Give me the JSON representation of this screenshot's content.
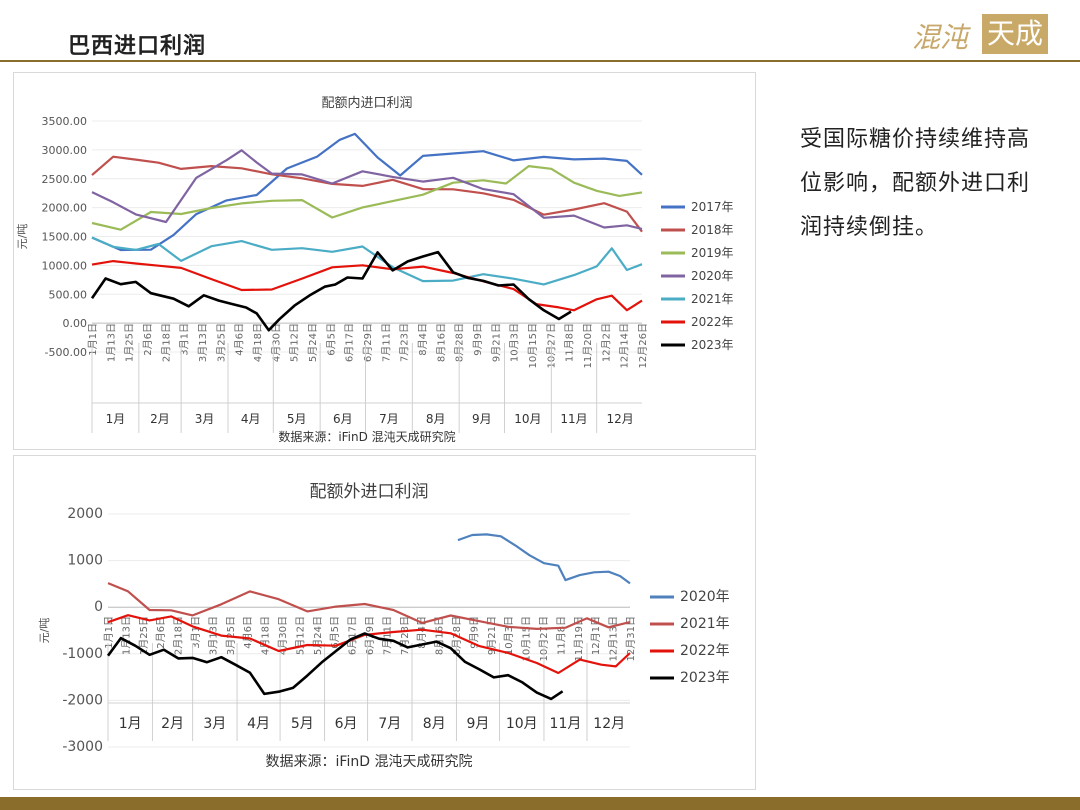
{
  "page": {
    "title": "巴西进口利润",
    "logo_script": "混沌",
    "logo_box": "天成",
    "commentary": "受国际糖价持续维持高位影响，配额外进口利润持续倒挂。",
    "accent_color": "#8a6d2b"
  },
  "chart_data": [
    {
      "type": "line",
      "title": "配额内进口利润",
      "ylabel": "元/吨",
      "source": "数据来源：iFinD 混沌天成研究院",
      "ylim": [
        -500,
        3500
      ],
      "y_ticks": [
        "3500.00",
        "3000.00",
        "2500.00",
        "2000.00",
        "1500.00",
        "1000.00",
        "500.00",
        "0.00",
        "-500.00"
      ],
      "months": [
        "1月",
        "2月",
        "3月",
        "4月",
        "5月",
        "6月",
        "7月",
        "8月",
        "9月",
        "10月",
        "11月",
        "12月"
      ],
      "date_ticks": [
        "1月1日",
        "1月13日",
        "1月25日",
        "2月6日",
        "2月18日",
        "3月1日",
        "3月13日",
        "3月25日",
        "4月6日",
        "4月18日",
        "4月30日",
        "5月12日",
        "5月24日",
        "6月5日",
        "6月17日",
        "6月29日",
        "7月11日",
        "7月23日",
        "8月4日",
        "8月16日",
        "8月28日",
        "9月9日",
        "9月21日",
        "10月3日",
        "10月15日",
        "10月27日",
        "11月8日",
        "11月20日",
        "12月2日",
        "12月14日",
        "12月26日"
      ],
      "x_unit": "day of year",
      "series": [
        {
          "name": "2017年",
          "color": "#4472c4",
          "x": [
            1,
            20,
            40,
            55,
            70,
            90,
            110,
            130,
            150,
            165,
            175,
            190,
            205,
            220,
            240,
            260,
            280,
            300,
            320,
            340,
            355,
            365
          ],
          "y": [
            1450,
            1250,
            1300,
            1550,
            1900,
            2100,
            2250,
            2650,
            2900,
            3200,
            3250,
            2850,
            2550,
            2900,
            2950,
            2950,
            2850,
            2850,
            2850,
            2850,
            2800,
            2600
          ]
        },
        {
          "name": "2018年",
          "color": "#c0504d",
          "x": [
            1,
            15,
            30,
            45,
            60,
            80,
            100,
            120,
            140,
            160,
            180,
            200,
            220,
            240,
            260,
            280,
            300,
            320,
            340,
            355,
            365
          ],
          "y": [
            2550,
            2850,
            2800,
            2750,
            2650,
            2750,
            2650,
            2600,
            2500,
            2400,
            2400,
            2450,
            2350,
            2300,
            2250,
            2150,
            1850,
            2000,
            2050,
            1900,
            1600
          ]
        },
        {
          "name": "2019年",
          "color": "#9bbb59",
          "x": [
            1,
            20,
            40,
            60,
            80,
            100,
            120,
            140,
            160,
            180,
            200,
            220,
            240,
            260,
            275,
            290,
            305,
            320,
            335,
            350,
            365
          ],
          "y": [
            1750,
            1650,
            1900,
            1900,
            2000,
            2050,
            2150,
            2100,
            1850,
            2000,
            2100,
            2250,
            2400,
            2500,
            2450,
            2750,
            2700,
            2450,
            2300,
            2200,
            2250
          ]
        },
        {
          "name": "2020年",
          "color": "#8064a2",
          "x": [
            1,
            15,
            30,
            50,
            70,
            90,
            100,
            110,
            120,
            140,
            160,
            180,
            200,
            220,
            240,
            260,
            280,
            300,
            320,
            340,
            355,
            365
          ],
          "y": [
            2300,
            2100,
            1900,
            1750,
            2500,
            2850,
            3000,
            2750,
            2600,
            2550,
            2450,
            2600,
            2550,
            2450,
            2500,
            2350,
            2200,
            1850,
            1850,
            1650,
            1700,
            1600
          ]
        },
        {
          "name": "2021年",
          "color": "#4bacc6",
          "x": [
            1,
            15,
            30,
            45,
            60,
            80,
            100,
            120,
            140,
            160,
            180,
            200,
            220,
            240,
            260,
            280,
            300,
            320,
            335,
            345,
            355,
            365
          ],
          "y": [
            1500,
            1350,
            1300,
            1400,
            1100,
            1300,
            1450,
            1250,
            1300,
            1250,
            1300,
            1000,
            700,
            750,
            850,
            750,
            700,
            800,
            950,
            1300,
            950,
            1000
          ]
        },
        {
          "name": "2022年",
          "color": "#e3120b",
          "x": [
            1,
            15,
            30,
            45,
            60,
            80,
            100,
            120,
            140,
            160,
            180,
            200,
            220,
            240,
            260,
            280,
            295,
            310,
            320,
            335,
            345,
            355,
            365
          ],
          "y": [
            1000,
            1100,
            1050,
            1000,
            950,
            750,
            600,
            550,
            800,
            950,
            1000,
            950,
            950,
            900,
            700,
            600,
            350,
            300,
            200,
            400,
            450,
            250,
            400
          ]
        },
        {
          "name": "2023年",
          "color": "#000000",
          "x": [
            1,
            10,
            20,
            30,
            40,
            55,
            65,
            75,
            85,
            95,
            103,
            110,
            118,
            125,
            135,
            145,
            155,
            162,
            170,
            180,
            190,
            200,
            210,
            220,
            230,
            240,
            250,
            260,
            270,
            280,
            290,
            300,
            310,
            318
          ],
          "y": [
            400,
            800,
            650,
            700,
            550,
            450,
            300,
            450,
            400,
            350,
            300,
            200,
            -100,
            100,
            300,
            450,
            650,
            700,
            800,
            800,
            1200,
            900,
            1100,
            1150,
            1200,
            900,
            800,
            700,
            650,
            700,
            400,
            200,
            100,
            200
          ]
        }
      ]
    },
    {
      "type": "line",
      "title": "配额外进口利润",
      "ylabel": "元/吨",
      "source": "数据来源：iFinD 混沌天成研究院",
      "ylim": [
        -3000,
        2000
      ],
      "y_ticks": [
        "2000",
        "1000",
        "0",
        "-1000",
        "-2000",
        "-3000"
      ],
      "months": [
        "1月",
        "2月",
        "3月",
        "4月",
        "5月",
        "6月",
        "7月",
        "8月",
        "9月",
        "10月",
        "11月",
        "12月"
      ],
      "date_ticks": [
        "1月1日",
        "1月13日",
        "1月25日",
        "2月6日",
        "2月18日",
        "3月1日",
        "3月13日",
        "3月25日",
        "4月6日",
        "4月18日",
        "4月30日",
        "5月12日",
        "5月24日",
        "6月5日",
        "6月17日",
        "6月29日",
        "7月11日",
        "7月23日",
        "8月4日",
        "8月16日",
        "8月28日",
        "9月9日",
        "9月21日",
        "10月3日",
        "10月15日",
        "10月27日",
        "11月8日",
        "11月19日",
        "12月1日",
        "12月13日",
        "12月31日"
      ],
      "x_unit": "day of year",
      "series": [
        {
          "name": "2020年",
          "color": "#4f81bd",
          "x": [
            245,
            255,
            265,
            275,
            285,
            295,
            305,
            315,
            320,
            330,
            340,
            350,
            358,
            365
          ],
          "y": [
            1400,
            1550,
            1600,
            1500,
            1300,
            1150,
            950,
            850,
            600,
            650,
            750,
            800,
            700,
            550
          ]
        },
        {
          "name": "2021年",
          "color": "#c0504d",
          "x": [
            1,
            15,
            30,
            45,
            60,
            80,
            100,
            120,
            140,
            160,
            180,
            200,
            220,
            240,
            260,
            280,
            300,
            320,
            335,
            350,
            365
          ],
          "y": [
            500,
            300,
            -100,
            -100,
            -200,
            100,
            300,
            200,
            -100,
            0,
            100,
            -100,
            -300,
            -200,
            -300,
            -400,
            -500,
            -400,
            -200,
            -400,
            -300
          ]
        },
        {
          "name": "2022年",
          "color": "#e3120b",
          "x": [
            1,
            15,
            30,
            45,
            60,
            80,
            100,
            120,
            140,
            160,
            180,
            200,
            220,
            240,
            260,
            280,
            300,
            315,
            330,
            345,
            355,
            365
          ],
          "y": [
            -300,
            -200,
            -300,
            -200,
            -400,
            -600,
            -700,
            -900,
            -850,
            -800,
            -600,
            -550,
            -450,
            -600,
            -800,
            -1000,
            -1200,
            -1400,
            -1100,
            -1200,
            -1300,
            -1000
          ]
        },
        {
          "name": "2023年",
          "color": "#000000",
          "x": [
            1,
            10,
            20,
            30,
            40,
            50,
            60,
            70,
            80,
            90,
            100,
            110,
            120,
            130,
            140,
            150,
            160,
            170,
            180,
            190,
            200,
            210,
            220,
            230,
            240,
            250,
            260,
            270,
            280,
            290,
            300,
            310,
            318
          ],
          "y": [
            -1000,
            -700,
            -800,
            -1000,
            -950,
            -1100,
            -1050,
            -1200,
            -1100,
            -1200,
            -1400,
            -1900,
            -1800,
            -1700,
            -1500,
            -1200,
            -900,
            -700,
            -600,
            -650,
            -700,
            -900,
            -800,
            -700,
            -900,
            -1200,
            -1300,
            -1500,
            -1500,
            -1600,
            -1800,
            -2000,
            -1800
          ]
        }
      ]
    }
  ]
}
